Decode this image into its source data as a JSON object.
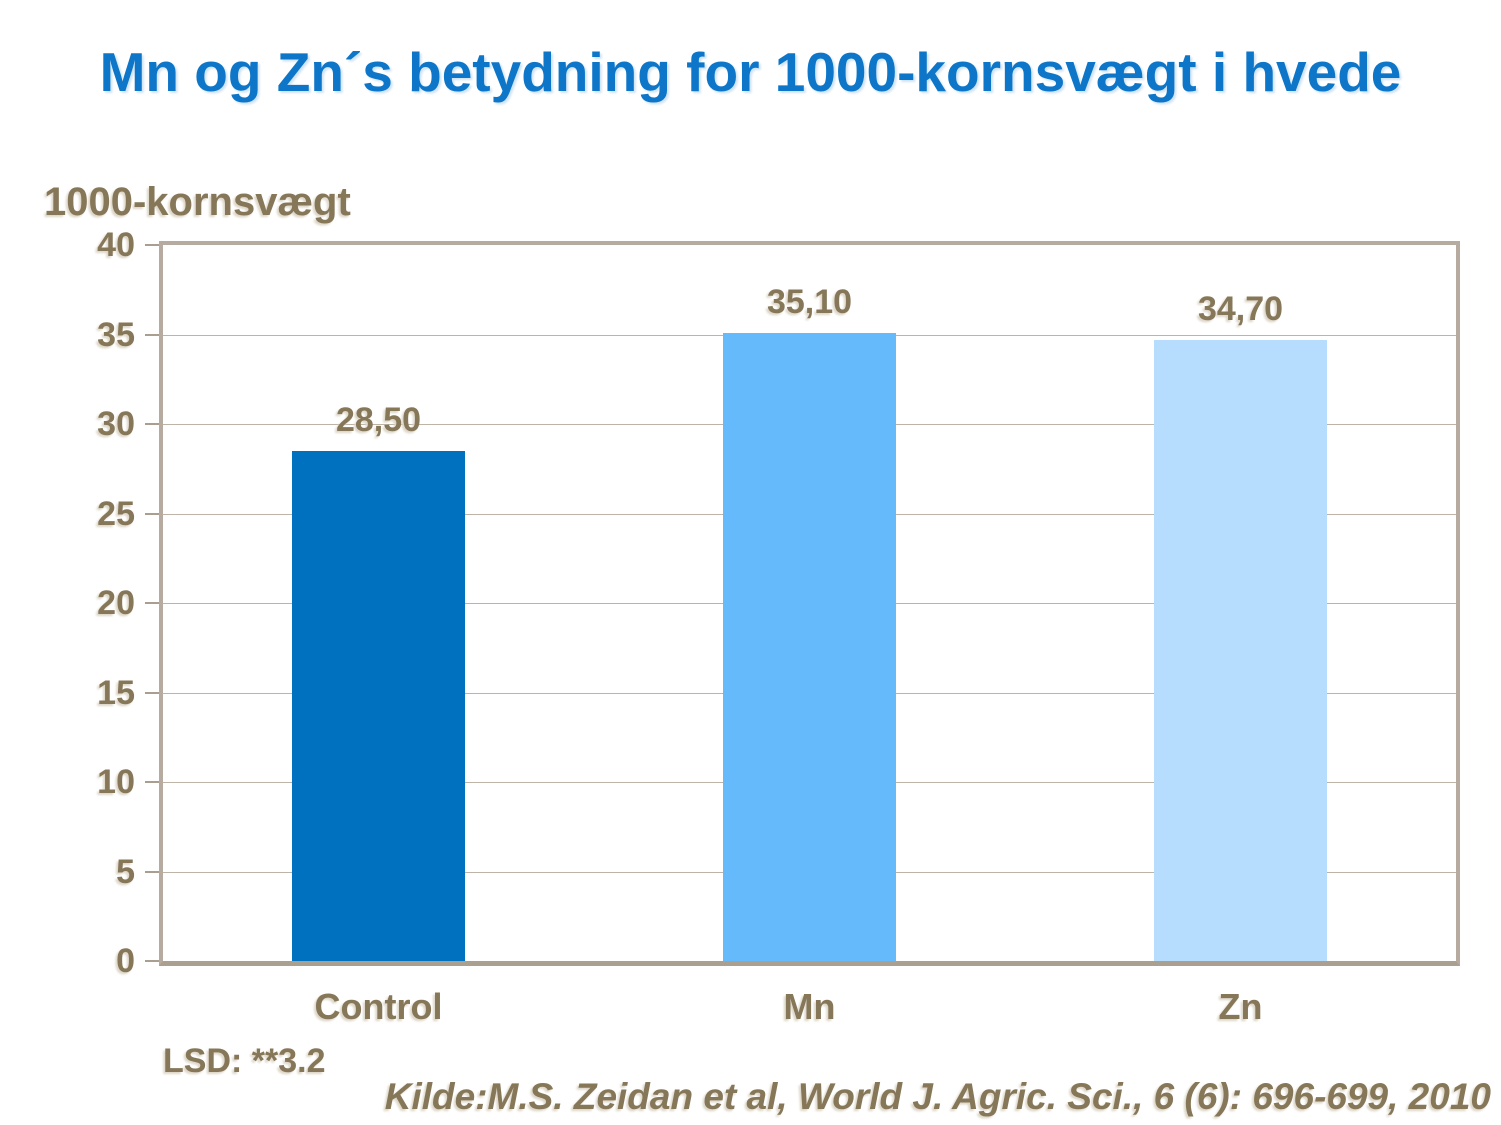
{
  "chart_data": {
    "type": "bar",
    "title": "Mn og Zn´s betydning for 1000-kornsvægt i hvede",
    "ylabel": "1000-kornsvægt",
    "xlabel": "",
    "categories": [
      "Control",
      "Mn",
      "Zn"
    ],
    "values": [
      28.5,
      35.1,
      34.7
    ],
    "value_labels": [
      "28,50",
      "35,10",
      "34,70"
    ],
    "bar_colors": [
      "#0071BE",
      "#64BAFB",
      "#B6DDFE"
    ],
    "ylim": [
      0,
      40
    ],
    "yticks": [
      0,
      5,
      10,
      15,
      20,
      25,
      30,
      35,
      40
    ],
    "grid": true,
    "legend": false
  },
  "colors": {
    "title_blue": "#0d76c8",
    "text_brown": "#867759",
    "axis_border": "#b6ab9e",
    "gridline": "#bdb3a6",
    "background": "#ffffff"
  },
  "footnotes": {
    "lsd": "LSD: **3.2",
    "source": "Kilde:M.S. Zeidan et al, World J. Agric. Sci., 6 (6): 696-699, 2010"
  }
}
